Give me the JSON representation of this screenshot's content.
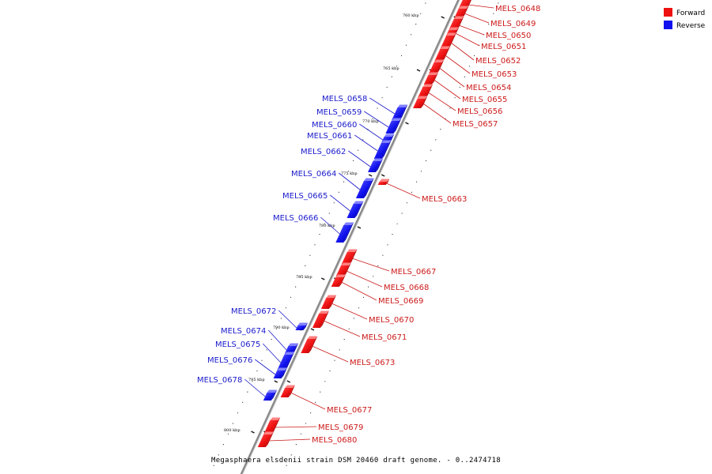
{
  "caption": "Megasphaera elsdenii strain DSM 20460 draft genome. - 0..2474718",
  "legend": [
    {
      "label": "Forward",
      "color": "#ee1111"
    },
    {
      "label": "Reverse",
      "color": "#1111ee"
    }
  ],
  "ticks": [
    "760 kbp",
    "765 kbp",
    "770 kbp",
    "775 kbp",
    "780 kbp",
    "785 kbp",
    "790 kbp",
    "795 kbp",
    "800 kbp"
  ],
  "genes": [
    {
      "name": "MELS_0648",
      "strand": "forward"
    },
    {
      "name": "MELS_0649",
      "strand": "forward"
    },
    {
      "name": "MELS_0650",
      "strand": "forward"
    },
    {
      "name": "MELS_0651",
      "strand": "forward"
    },
    {
      "name": "MELS_0652",
      "strand": "forward"
    },
    {
      "name": "MELS_0653",
      "strand": "forward"
    },
    {
      "name": "MELS_0654",
      "strand": "forward"
    },
    {
      "name": "MELS_0655",
      "strand": "forward"
    },
    {
      "name": "MELS_0656",
      "strand": "forward"
    },
    {
      "name": "MELS_0657",
      "strand": "forward"
    },
    {
      "name": "MELS_0658",
      "strand": "reverse"
    },
    {
      "name": "MELS_0659",
      "strand": "reverse"
    },
    {
      "name": "MELS_0660",
      "strand": "reverse"
    },
    {
      "name": "MELS_0661",
      "strand": "reverse"
    },
    {
      "name": "MELS_0662",
      "strand": "reverse"
    },
    {
      "name": "MELS_0663",
      "strand": "forward"
    },
    {
      "name": "MELS_0664",
      "strand": "reverse"
    },
    {
      "name": "MELS_0665",
      "strand": "reverse"
    },
    {
      "name": "MELS_0666",
      "strand": "reverse"
    },
    {
      "name": "MELS_0667",
      "strand": "forward"
    },
    {
      "name": "MELS_0668",
      "strand": "forward"
    },
    {
      "name": "MELS_0669",
      "strand": "forward"
    },
    {
      "name": "MELS_0670",
      "strand": "forward"
    },
    {
      "name": "MELS_0671",
      "strand": "forward"
    },
    {
      "name": "MELS_0672",
      "strand": "reverse"
    },
    {
      "name": "MELS_0673",
      "strand": "forward"
    },
    {
      "name": "MELS_0674",
      "strand": "reverse"
    },
    {
      "name": "MELS_0675",
      "strand": "reverse"
    },
    {
      "name": "MELS_0676",
      "strand": "reverse"
    },
    {
      "name": "MELS_0677",
      "strand": "forward"
    },
    {
      "name": "MELS_0678",
      "strand": "reverse"
    },
    {
      "name": "MELS_0679",
      "strand": "forward"
    },
    {
      "name": "MELS_0680",
      "strand": "forward"
    }
  ]
}
